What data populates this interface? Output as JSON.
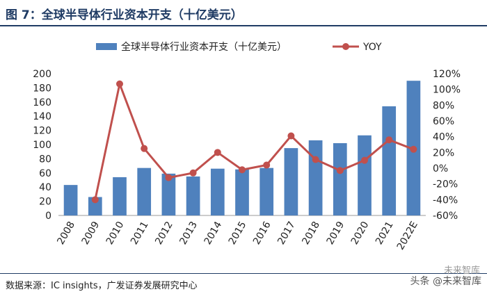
{
  "figure": {
    "title": "图 7：全球半导体行业资本开支（十亿美元）",
    "source": "数据来源：IC insights，广发证券发展研究中心",
    "watermark": "头条 @未来智库",
    "watermark_brand": "未来智库"
  },
  "chart_data": {
    "type": "bar",
    "categories": [
      "2008",
      "2009",
      "2010",
      "2011",
      "2012",
      "2013",
      "2014",
      "2015",
      "2016",
      "2017",
      "2018",
      "2019",
      "2020",
      "2021",
      "2022E"
    ],
    "series": [
      {
        "name": "全球半导体行业资本开支（十亿美元）",
        "type": "bar",
        "axis": "left",
        "color": "#4f81bd",
        "values": [
          43,
          26,
          54,
          67,
          59,
          55,
          66,
          65,
          67,
          95,
          106,
          102,
          113,
          154,
          190
        ]
      },
      {
        "name": "YOY",
        "type": "line",
        "axis": "right",
        "color": "#c0504d",
        "values": [
          null,
          -40,
          107,
          25,
          -12,
          -6,
          20,
          -2,
          4,
          41,
          11,
          -3,
          10,
          36,
          24
        ]
      }
    ],
    "y_left": {
      "min": 0,
      "max": 200,
      "ticks": [
        0,
        20,
        40,
        60,
        80,
        100,
        120,
        140,
        160,
        180,
        200
      ]
    },
    "y_right": {
      "min": -60,
      "max": 120,
      "ticks": [
        "-60%",
        "-40%",
        "-20%",
        "0%",
        "20%",
        "40%",
        "60%",
        "80%",
        "100%",
        "120%"
      ]
    },
    "legend": "top-center",
    "grid": false
  }
}
